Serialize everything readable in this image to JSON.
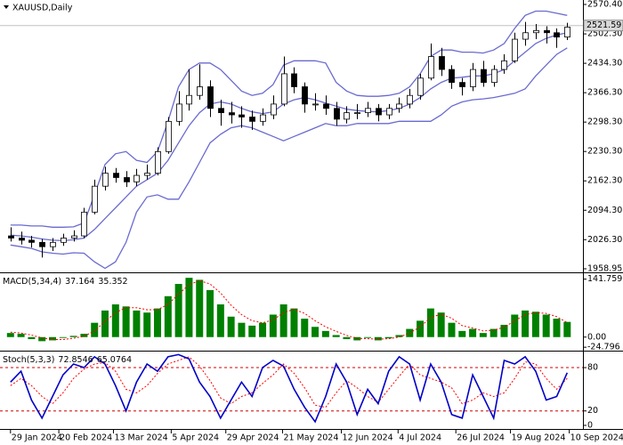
{
  "chart_data": [
    {
      "type": "candlestick",
      "title": "XAUUSD,Daily",
      "ohlc": [
        [
          2035,
          2055,
          2022,
          2030
        ],
        [
          2030,
          2045,
          2015,
          2025
        ],
        [
          2025,
          2035,
          2008,
          2020
        ],
        [
          2020,
          2028,
          1985,
          2010
        ],
        [
          2010,
          2030,
          2000,
          2020
        ],
        [
          2020,
          2040,
          2012,
          2030
        ],
        [
          2030,
          2048,
          2022,
          2035
        ],
        [
          2035,
          2100,
          2030,
          2090
        ],
        [
          2090,
          2165,
          2085,
          2150
        ],
        [
          2150,
          2195,
          2140,
          2180
        ],
        [
          2180,
          2192,
          2158,
          2170
        ],
        [
          2170,
          2185,
          2148,
          2160
        ],
        [
          2160,
          2190,
          2150,
          2175
        ],
        [
          2175,
          2200,
          2165,
          2180
        ],
        [
          2180,
          2240,
          2175,
          2230
        ],
        [
          2230,
          2310,
          2225,
          2300
        ],
        [
          2300,
          2370,
          2290,
          2340
        ],
        [
          2340,
          2420,
          2325,
          2360
        ],
        [
          2360,
          2432,
          2350,
          2380
        ],
        [
          2380,
          2395,
          2310,
          2330
        ],
        [
          2330,
          2350,
          2290,
          2320
        ],
        [
          2320,
          2345,
          2295,
          2315
        ],
        [
          2315,
          2335,
          2285,
          2310
        ],
        [
          2310,
          2325,
          2280,
          2300
        ],
        [
          2300,
          2330,
          2290,
          2315
        ],
        [
          2315,
          2360,
          2305,
          2340
        ],
        [
          2340,
          2450,
          2335,
          2410
        ],
        [
          2410,
          2425,
          2365,
          2380
        ],
        [
          2380,
          2390,
          2320,
          2340
        ],
        [
          2340,
          2365,
          2325,
          2340
        ],
        [
          2340,
          2360,
          2315,
          2330
        ],
        [
          2330,
          2345,
          2290,
          2305
        ],
        [
          2305,
          2335,
          2295,
          2320
        ],
        [
          2320,
          2340,
          2305,
          2320
        ],
        [
          2320,
          2345,
          2310,
          2330
        ],
        [
          2330,
          2340,
          2300,
          2315
        ],
        [
          2315,
          2340,
          2305,
          2330
        ],
        [
          2330,
          2355,
          2320,
          2340
        ],
        [
          2340,
          2375,
          2330,
          2360
        ],
        [
          2360,
          2410,
          2350,
          2400
        ],
        [
          2400,
          2480,
          2395,
          2450
        ],
        [
          2450,
          2470,
          2405,
          2420
        ],
        [
          2420,
          2430,
          2375,
          2390
        ],
        [
          2390,
          2400,
          2360,
          2380
        ],
        [
          2380,
          2435,
          2370,
          2420
        ],
        [
          2420,
          2440,
          2380,
          2390
        ],
        [
          2390,
          2430,
          2380,
          2420
        ],
        [
          2420,
          2455,
          2410,
          2440
        ],
        [
          2440,
          2505,
          2435,
          2490
        ],
        [
          2490,
          2530,
          2475,
          2505
        ],
        [
          2505,
          2525,
          2490,
          2510
        ],
        [
          2510,
          2520,
          2480,
          2505
        ],
        [
          2505,
          2515,
          2470,
          2495
        ],
        [
          2495,
          2528,
          2488,
          2518
        ]
      ],
      "bands": {
        "color": "#6a6ad0",
        "upper": [
          2060,
          2060,
          2058,
          2058,
          2055,
          2055,
          2056,
          2065,
          2130,
          2200,
          2225,
          2230,
          2210,
          2205,
          2230,
          2300,
          2380,
          2420,
          2435,
          2435,
          2420,
          2395,
          2370,
          2360,
          2365,
          2385,
          2430,
          2440,
          2440,
          2440,
          2435,
          2390,
          2370,
          2360,
          2358,
          2358,
          2360,
          2365,
          2380,
          2410,
          2450,
          2465,
          2465,
          2460,
          2460,
          2458,
          2465,
          2480,
          2515,
          2545,
          2555,
          2555,
          2550,
          2545
        ],
        "middle": [
          2037,
          2035,
          2032,
          2028,
          2025,
          2024,
          2026,
          2030,
          2050,
          2075,
          2100,
          2125,
          2150,
          2165,
          2180,
          2210,
          2250,
          2290,
          2320,
          2340,
          2345,
          2340,
          2330,
          2322,
          2318,
          2322,
          2340,
          2350,
          2355,
          2350,
          2342,
          2335,
          2328,
          2325,
          2323,
          2322,
          2325,
          2330,
          2340,
          2355,
          2375,
          2390,
          2400,
          2402,
          2405,
          2405,
          2410,
          2420,
          2440,
          2460,
          2480,
          2492,
          2500,
          2505
        ],
        "lower": [
          2014,
          2010,
          2006,
          1998,
          1995,
          1993,
          1996,
          1995,
          1975,
          1960,
          1975,
          2020,
          2090,
          2125,
          2130,
          2120,
          2120,
          2160,
          2205,
          2250,
          2270,
          2285,
          2290,
          2285,
          2275,
          2265,
          2255,
          2265,
          2275,
          2285,
          2295,
          2290,
          2290,
          2295,
          2295,
          2295,
          2295,
          2300,
          2300,
          2300,
          2300,
          2315,
          2335,
          2345,
          2350,
          2352,
          2355,
          2360,
          2365,
          2375,
          2405,
          2430,
          2455,
          2470
        ]
      },
      "last_price": 2521.59,
      "ylim": [
        1950.7,
        2580.7
      ],
      "yticks": [
        {
          "value": 2570.4,
          "label": "2570.40"
        },
        {
          "value": 2502.3,
          "label": "2502.30"
        },
        {
          "value": 2434.3,
          "label": "2434.30"
        },
        {
          "value": 2366.3,
          "label": "2366.30"
        },
        {
          "value": 2298.3,
          "label": "2298.30"
        },
        {
          "value": 2230.3,
          "label": "2230.30"
        },
        {
          "value": 2162.3,
          "label": "2162.30"
        },
        {
          "value": 2094.3,
          "label": "2094.30"
        },
        {
          "value": 2026.3,
          "label": "2026.30"
        },
        1958.95
      ],
      "xlim": [
        -1,
        54.5
      ]
    },
    {
      "type": "macd",
      "title": "MACD(5,34,4)",
      "histogram": {
        "color": "#008000",
        "values": [
          10,
          8,
          -5,
          -10,
          -8,
          -2,
          3,
          8,
          35,
          65,
          80,
          75,
          65,
          60,
          70,
          100,
          130,
          145,
          140,
          115,
          80,
          50,
          35,
          28,
          35,
          55,
          80,
          70,
          45,
          25,
          15,
          5,
          -5,
          -8,
          -2,
          -8,
          -3,
          5,
          20,
          40,
          70,
          60,
          35,
          15,
          20,
          10,
          20,
          30,
          55,
          65,
          62,
          55,
          45,
          37.164
        ]
      },
      "signal": {
        "color": "#ff0000",
        "values": [
          12,
          10,
          5,
          -2,
          -6,
          -6,
          -3,
          2,
          15,
          38,
          60,
          72,
          72,
          67,
          67,
          80,
          105,
          128,
          138,
          130,
          108,
          78,
          55,
          40,
          35,
          42,
          60,
          68,
          58,
          40,
          25,
          14,
          4,
          -3,
          -4,
          -5,
          -4,
          0,
          10,
          25,
          48,
          56,
          46,
          28,
          22,
          15,
          17,
          24,
          40,
          55,
          60,
          58,
          50,
          35.352
        ]
      },
      "ylim": [
        -31,
        154
      ],
      "yticks": [
        141.759,
        {
          "value": 0,
          "label": "0.00"
        },
        -24.796
      ],
      "xlim": [
        -1,
        54.5
      ]
    },
    {
      "type": "stochastic",
      "title": "Stoch(5,3,3)",
      "main": {
        "color": "#0000c8",
        "values": [
          60,
          75,
          35,
          10,
          40,
          70,
          85,
          80,
          95,
          85,
          55,
          20,
          60,
          85,
          75,
          95,
          98,
          92,
          60,
          40,
          10,
          35,
          60,
          40,
          80,
          90,
          82,
          50,
          25,
          5,
          40,
          85,
          60,
          15,
          50,
          30,
          75,
          95,
          85,
          35,
          85,
          60,
          15,
          10,
          70,
          40,
          10,
          90,
          85,
          95,
          75,
          35,
          40,
          72.8546
        ]
      },
      "signal": {
        "color": "#ff0000",
        "values": [
          55,
          65,
          55,
          40,
          30,
          45,
          65,
          78,
          85,
          87,
          75,
          50,
          45,
          55,
          72,
          85,
          90,
          95,
          82,
          62,
          38,
          30,
          40,
          45,
          58,
          70,
          85,
          72,
          52,
          28,
          25,
          45,
          62,
          52,
          40,
          32,
          50,
          68,
          85,
          70,
          65,
          60,
          52,
          30,
          35,
          45,
          40,
          45,
          65,
          88,
          85,
          65,
          50,
          65.0764
        ]
      },
      "levels": [
        80,
        20
      ],
      "level_color": "#d00000",
      "ylim": [
        -5,
        101
      ],
      "yticks": [
        80,
        20,
        0
      ],
      "xlim": [
        -1,
        54.5
      ],
      "xticks": [
        {
          "value": 0,
          "label": "29 Jan 2024"
        },
        {
          "value": 4.6,
          "label": "20 Feb 2024"
        },
        {
          "value": 9.8,
          "label": "13 Mar 2024"
        },
        {
          "value": 15.3,
          "label": "5 Apr 2024"
        },
        {
          "value": 20.5,
          "label": "29 Apr 2024"
        },
        {
          "value": 25.9,
          "label": "21 May 2024"
        },
        {
          "value": 31.5,
          "label": "12 Jun 2024"
        },
        {
          "value": 36.9,
          "label": "4 Jul 2024"
        },
        {
          "value": 42.4,
          "label": "26 Jul 2024"
        },
        {
          "value": 47.6,
          "label": "19 Aug 2024"
        },
        {
          "value": 53.2,
          "label": "10 Sep 2024"
        }
      ]
    }
  ]
}
